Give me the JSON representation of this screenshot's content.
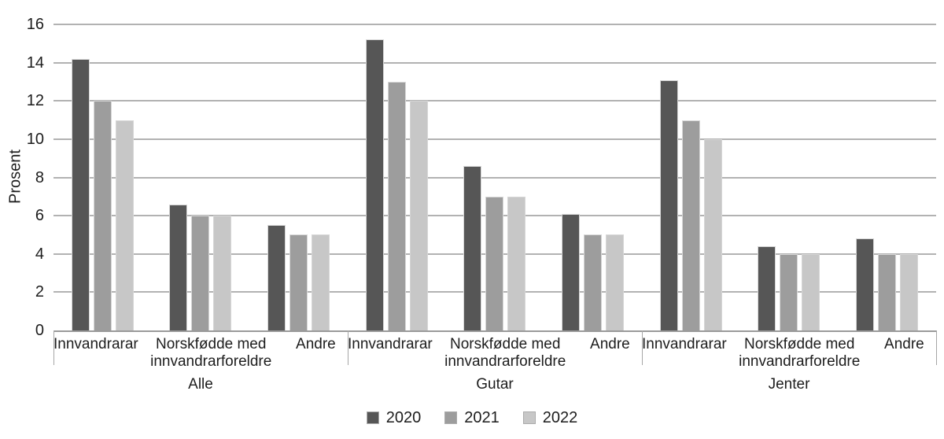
{
  "chart_data": {
    "type": "bar",
    "title": "",
    "xlabel": "",
    "ylabel": "Prosent",
    "ylim": [
      0,
      16
    ],
    "yticks": [
      0,
      2,
      4,
      6,
      8,
      10,
      12,
      14,
      16
    ],
    "grid": true,
    "legend_position": "bottom-center",
    "series": [
      {
        "name": "2020",
        "color": "#565656"
      },
      {
        "name": "2021",
        "color": "#9d9d9d"
      },
      {
        "name": "2022",
        "color": "#c7c7c7"
      }
    ],
    "groups": [
      {
        "label": "Alle",
        "categories": [
          {
            "label": "Innvandrarar",
            "values": [
              14.2,
              12,
              11
            ]
          },
          {
            "label": "Norskfødde med innvandrarforeldre",
            "values": [
              6.6,
              6,
              6
            ]
          },
          {
            "label": "Andre",
            "values": [
              5.5,
              5,
              5
            ]
          }
        ]
      },
      {
        "label": "Gutar",
        "categories": [
          {
            "label": "Innvandrarar",
            "values": [
              15.2,
              13,
              12
            ]
          },
          {
            "label": "Norskfødde med innvandrarforeldre",
            "values": [
              8.6,
              7,
              7
            ]
          },
          {
            "label": "Andre",
            "values": [
              6.1,
              5,
              5
            ]
          }
        ]
      },
      {
        "label": "Jenter",
        "categories": [
          {
            "label": "Innvandrarar",
            "values": [
              13.1,
              11,
              10
            ]
          },
          {
            "label": "Norskfødde med innvandrarforeldre",
            "values": [
              4.4,
              4,
              4
            ]
          },
          {
            "label": "Andre",
            "values": [
              4.8,
              4,
              4
            ]
          }
        ]
      }
    ]
  },
  "colors": {
    "gridline": "#b2b2b2",
    "axis": "#9a9a9a",
    "text": "#1d1d1d",
    "bar_border": "#d6d6d6"
  }
}
